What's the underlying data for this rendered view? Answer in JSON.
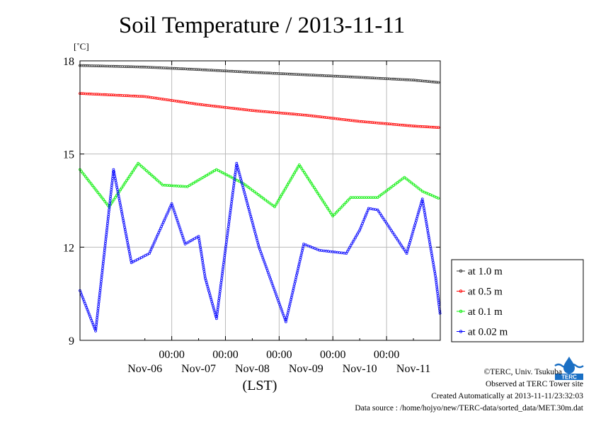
{
  "chart_data": {
    "type": "line",
    "title": "Soil Temperature / 2013-11-11",
    "ylabel": "[˚C]",
    "xlabel": "(LST)",
    "ylim": [
      9,
      18
    ],
    "yticks": [
      "18",
      "15",
      "12",
      "9"
    ],
    "xlim": [
      "2013-11-05 07:00",
      "2013-11-12 00:00"
    ],
    "xticks_time": [
      "00:00",
      "00:00",
      "00:00",
      "00:00",
      "00:00"
    ],
    "xticks_time_at": [
      "2013-11-07 00:00",
      "2013-11-08 00:00",
      "2013-11-09 00:00",
      "2013-11-10 00:00",
      "2013-11-11 00:00"
    ],
    "xticks_date": [
      "Nov-06",
      "Nov-07",
      "Nov-08",
      "Nov-09",
      "Nov-10",
      "Nov-11"
    ],
    "xticks_date_at": [
      "2013-11-06 12:00",
      "2013-11-07 12:00",
      "2013-11-08 12:00",
      "2013-11-09 12:00",
      "2013-11-10 12:00",
      "2013-11-11 12:00"
    ],
    "grid": true,
    "legend_position": "bottom-right",
    "series": [
      {
        "name": "at 1.0 m",
        "color": "#333333",
        "x": [
          "2013-11-05 07:00",
          "2013-11-06 12:00",
          "2013-11-07 12:00",
          "2013-11-08 12:00",
          "2013-11-09 12:00",
          "2013-11-10 12:00",
          "2013-11-11 12:00",
          "2013-11-12 00:00"
        ],
        "y": [
          17.85,
          17.8,
          17.72,
          17.63,
          17.55,
          17.47,
          17.38,
          17.3
        ]
      },
      {
        "name": "at 0.5 m",
        "color": "#ff0000",
        "x": [
          "2013-11-05 07:00",
          "2013-11-06 12:00",
          "2013-11-07 12:00",
          "2013-11-08 12:00",
          "2013-11-09 12:00",
          "2013-11-10 12:00",
          "2013-11-11 12:00",
          "2013-11-12 00:00"
        ],
        "y": [
          16.95,
          16.85,
          16.6,
          16.4,
          16.25,
          16.05,
          15.9,
          15.85
        ]
      },
      {
        "name": "at 0.1 m",
        "color": "#00ee00",
        "x": [
          "2013-11-05 07:00",
          "2013-11-05 20:00",
          "2013-11-06 09:00",
          "2013-11-06 20:00",
          "2013-11-07 07:00",
          "2013-11-07 20:00",
          "2013-11-08 08:00",
          "2013-11-08 22:00",
          "2013-11-09 09:00",
          "2013-11-10 00:00",
          "2013-11-10 08:00",
          "2013-11-10 20:00",
          "2013-11-11 08:00",
          "2013-11-11 16:00",
          "2013-11-12 00:00"
        ],
        "y": [
          14.5,
          13.3,
          14.7,
          14.0,
          13.95,
          14.5,
          14.05,
          13.3,
          14.65,
          13.0,
          13.6,
          13.6,
          14.25,
          13.8,
          13.55
        ]
      },
      {
        "name": "at 0.02 m",
        "color": "#0000ff",
        "x": [
          "2013-11-05 07:00",
          "2013-11-05 14:00",
          "2013-11-05 22:00",
          "2013-11-06 06:00",
          "2013-11-06 14:00",
          "2013-11-07 00:00",
          "2013-11-07 06:00",
          "2013-11-07 12:00",
          "2013-11-07 15:00",
          "2013-11-07 20:00",
          "2013-11-08 05:00",
          "2013-11-08 15:00",
          "2013-11-09 03:00",
          "2013-11-09 11:00",
          "2013-11-09 18:00",
          "2013-11-10 06:00",
          "2013-11-10 12:00",
          "2013-11-10 16:00",
          "2013-11-10 20:00",
          "2013-11-11 09:00",
          "2013-11-11 16:00",
          "2013-11-11 22:00",
          "2013-11-12 00:00"
        ],
        "y": [
          10.6,
          9.3,
          14.5,
          11.5,
          11.8,
          13.4,
          12.1,
          12.35,
          11.0,
          9.7,
          14.7,
          12.0,
          9.6,
          12.1,
          11.9,
          11.8,
          12.55,
          13.25,
          13.2,
          11.8,
          13.55,
          11.0,
          9.8
        ]
      }
    ]
  },
  "credits": {
    "org": "©TERC, Univ. Tsukuba",
    "site": "Observed at TERC Tower site",
    "created": "Created Automatically at 2013-11-11/23:32:03",
    "source": "Data source : /home/hojyo/new/TERC-data/sorted_data/MET.30m.dat"
  },
  "logo": {
    "name": "terc-logo",
    "text": "TERC",
    "color": "#1a6fc4"
  }
}
